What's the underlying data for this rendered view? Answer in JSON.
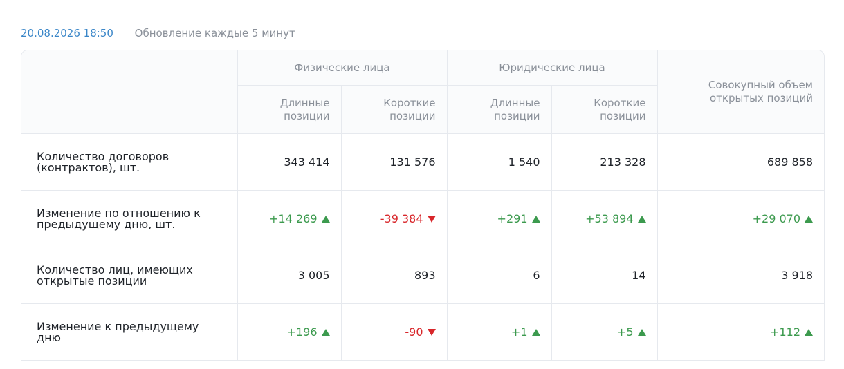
{
  "header": {
    "date": "20.08.2026 18:50",
    "note": "Обновление каждые 5 минут"
  },
  "table": {
    "group_headers": [
      "Физические лица",
      "Юридические лица"
    ],
    "column_headers": [
      "Длинные позиции",
      "Короткие позиции",
      "Длинные позиции",
      "Короткие позиции",
      "Совокупный объем открытых позиций"
    ],
    "rows": [
      {
        "label": "Количество договоров (контрактов), шт.",
        "cells": [
          "343 414",
          "131 576",
          "1 540",
          "213 328",
          "689 858"
        ]
      },
      {
        "label": "Изменение по отношению к предыдущему дню, шт.",
        "cells": [
          "+14 269",
          "-39 384",
          "+291",
          "+53 894",
          "+29 070"
        ]
      },
      {
        "label": "Количество лиц, имеющих открытые позиции",
        "cells": [
          "3 005",
          "893",
          "6",
          "14",
          "3 918"
        ]
      },
      {
        "label": "Изменение к предыдущему дню",
        "cells": [
          "+196",
          "-90",
          "+1",
          "+5",
          "+112"
        ]
      }
    ]
  }
}
